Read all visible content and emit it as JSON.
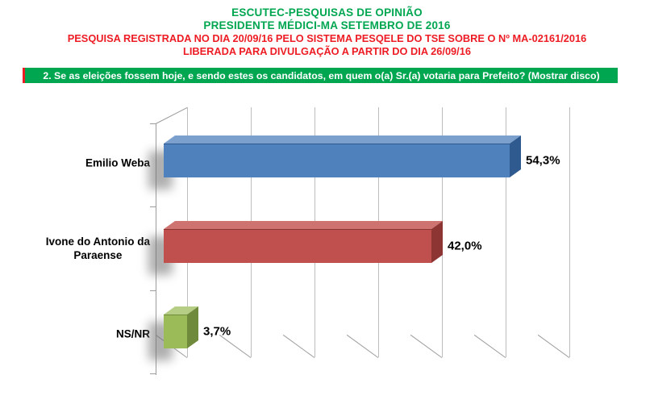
{
  "header": {
    "title1": "ESCUTEC-PESQUISAS DE OPINIÃO",
    "title2": "PRESIDENTE MÉDICI-MA SETEMBRO DE 2016",
    "note1": "PESQUISA REGISTRADA NO DIA 20/09/16 PELO SISTEMA PESQELE DO TSE SOBRE O Nº MA-02161/2016",
    "note2": "LIBERADA PARA DIVULGAÇÃO A PARTIR DO DIA 26/09/16",
    "title_color": "#00A650",
    "note_color": "#ED1C24"
  },
  "banner": {
    "text": "2. Se as eleições fossem hoje, e sendo estes os candidatos, em quem o(a) Sr.(a) votaria para Prefeito? (Mostrar disco)",
    "bg_color": "#00A650",
    "text_color": "#FFFFFF",
    "left_accent_color": "#ED1C24"
  },
  "chart_data": {
    "type": "bar",
    "orientation": "horizontal",
    "style": "3d",
    "title": "",
    "xlabel": "",
    "ylabel": "",
    "categories": [
      "Emilio Weba",
      "Ivone do Antonio da\nParaense",
      "NS/NR"
    ],
    "values": [
      54.3,
      42.0,
      3.7
    ],
    "value_labels": [
      "54,3%",
      "42,0%",
      "3,7%"
    ],
    "bar_colors": [
      {
        "front": "#4F81BD",
        "top": "#7BA0CE",
        "side": "#2E5A8F"
      },
      {
        "front": "#C0504D",
        "top": "#CE7370",
        "side": "#8C3532"
      },
      {
        "front": "#9BBB59",
        "top": "#B5CD85",
        "side": "#6E8A3A"
      }
    ],
    "xlim": [
      0,
      60
    ],
    "grid_interval": 10,
    "grid": true,
    "legend": false,
    "gridline_color": "#BDBDBD",
    "axis_color": "#9C9C9C"
  }
}
